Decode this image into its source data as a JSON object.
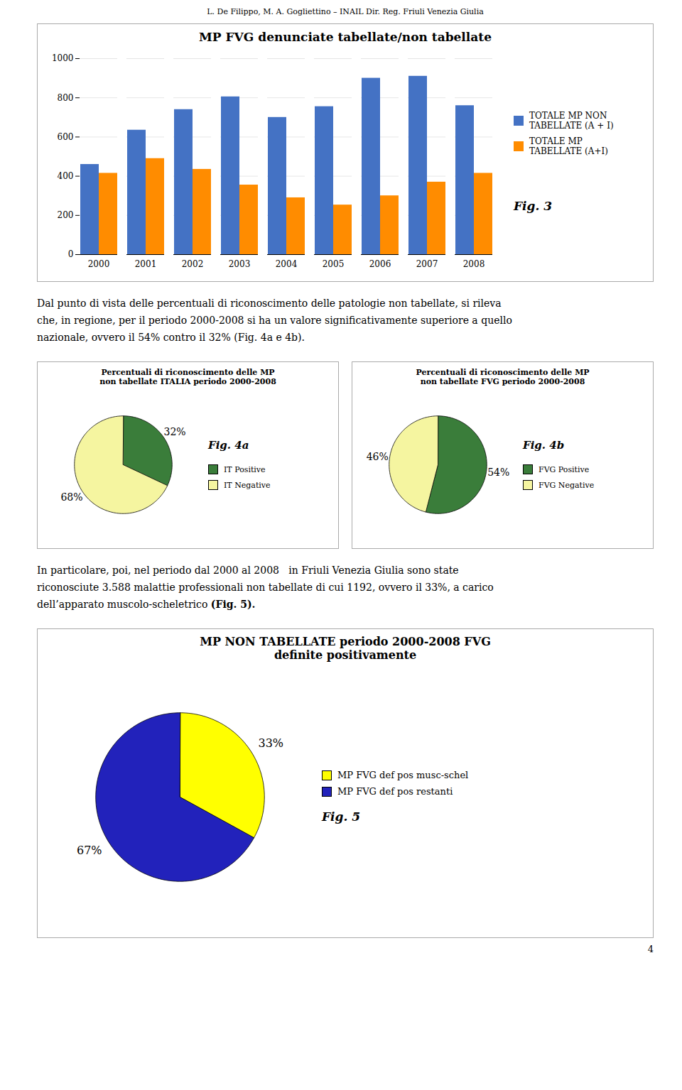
{
  "header": "L. De Filippo,  M. A. Gogliettino – INAIL Dir. Reg. Friuli Venezia Giulia",
  "page_number": "4",
  "paragraphs": [
    [
      "Dal punto di vista delle percentuali di riconoscimento delle patologie non tabellate, si rileva",
      "che, in regione, per il periodo 2000-2008 si ha un valore significativamente superiore a quello",
      "nazionale, ovvero il 54% contro il 32% (Fig. 4a e 4b)."
    ],
    [
      "In particolare, poi, nel periodo dal 2000 al 2008   in Friuli Venezia Giulia sono state",
      "riconosciute 3.588 malattie professionali non tabellate di cui 1192, ovvero il 33%, a carico",
      [
        "dell’apparato muscolo-scheletrico ",
        "(Fig. 5)."
      ]
    ]
  ],
  "chart_data": [
    {
      "type": "bar",
      "title": "MP FVG denunciate tabellate/non tabellate",
      "categories": [
        "2000",
        "2001",
        "2002",
        "2003",
        "2004",
        "2005",
        "2006",
        "2007",
        "2008"
      ],
      "series": [
        {
          "name": "TOTALE MP NON\nTABELLATE (A + I)",
          "color": "#4472C4",
          "values": [
            460,
            635,
            740,
            805,
            700,
            755,
            900,
            910,
            760
          ]
        },
        {
          "name": "TOTALE MP\nTABELLATE (A+I)",
          "color": "#FF8C00",
          "values": [
            415,
            490,
            435,
            355,
            290,
            253,
            300,
            370,
            415
          ]
        }
      ],
      "ylim": [
        0,
        1000
      ],
      "yticks": [
        0,
        200,
        400,
        600,
        800,
        1000
      ],
      "grid": true,
      "legend": "right",
      "annotations": [
        "Fig. 3"
      ]
    },
    {
      "type": "pie",
      "title": "Percentuali di riconoscimento delle MP",
      "subtitle": "non tabellate ITALIA periodo 2000-2008",
      "categories": [
        "IT Positive",
        "IT Negative"
      ],
      "values": [
        32,
        68
      ],
      "value_labels": [
        "32%",
        "68%"
      ],
      "colors": [
        "#3A7D3A",
        "#F5F5A0"
      ],
      "data_labels": true,
      "legend": "right",
      "annotations": [
        "Fig. 4a"
      ]
    },
    {
      "type": "pie",
      "title": "Percentuali di riconoscimento delle MP",
      "subtitle": "non tabellate FVG periodo 2000-2008",
      "categories": [
        "FVG Positive",
        "FVG Negative"
      ],
      "values": [
        54,
        46
      ],
      "value_labels": [
        "54%",
        "46%"
      ],
      "colors": [
        "#3A7D3A",
        "#F5F5A0"
      ],
      "data_labels": true,
      "legend": "right",
      "annotations": [
        "Fig. 4b"
      ]
    },
    {
      "type": "pie",
      "title": "MP NON TABELLATE periodo 2000-2008 FVG",
      "subtitle": "definite positivamente",
      "categories": [
        "MP FVG def pos musc-schel",
        "MP FVG def pos restanti"
      ],
      "values": [
        33,
        67
      ],
      "value_labels": [
        "33%",
        "67%"
      ],
      "colors": [
        "#FFFF00",
        "#2222BB"
      ],
      "data_labels": true,
      "legend": "right",
      "annotations": [
        "Fig. 5"
      ]
    }
  ]
}
